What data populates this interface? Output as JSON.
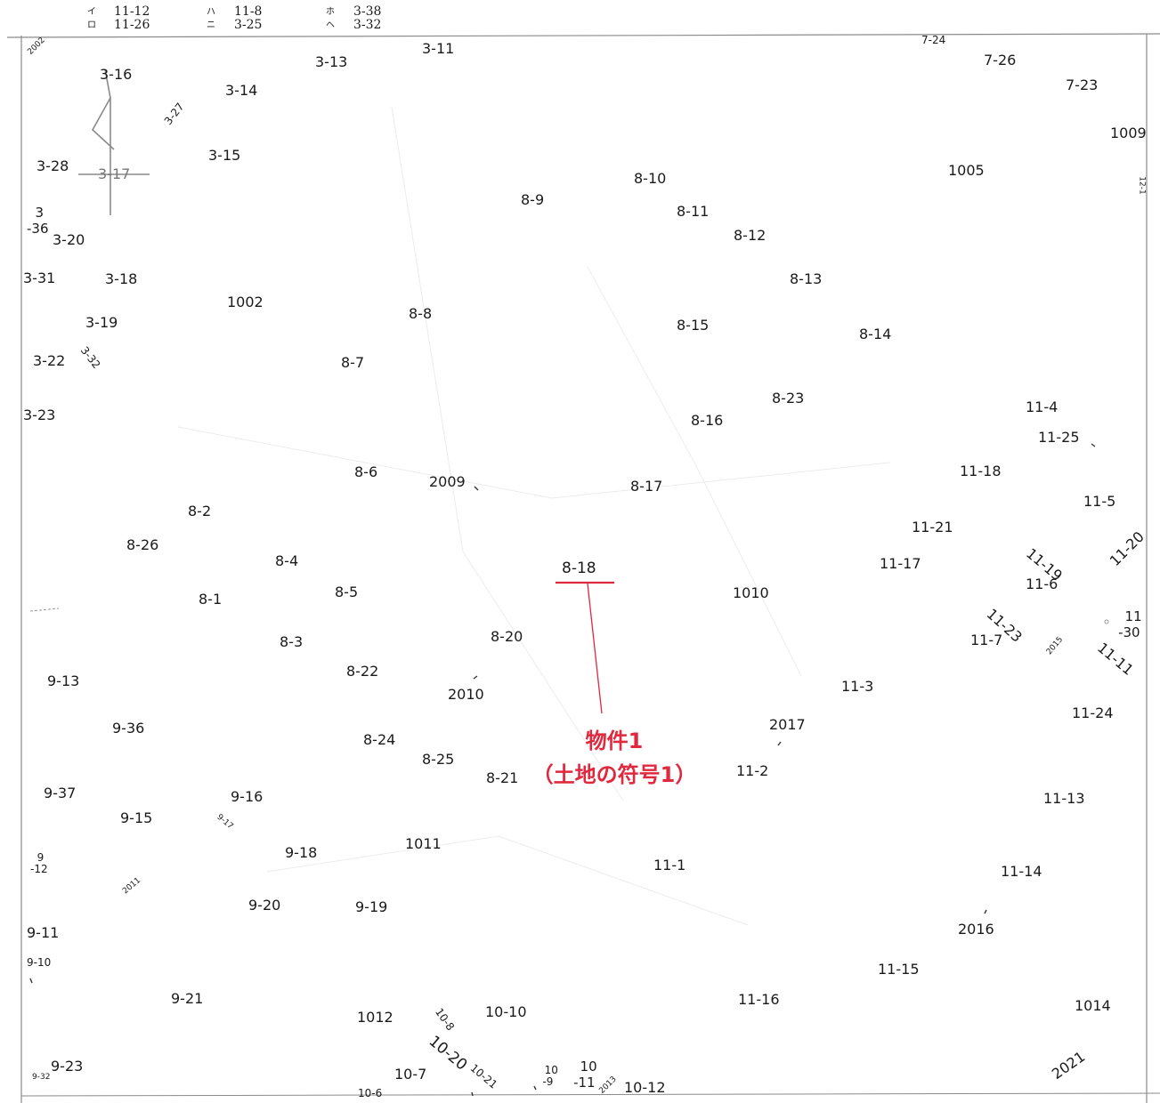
{
  "legend": {
    "entries": [
      {
        "marks": "イ\nロ",
        "values": "11-12\n11-26"
      },
      {
        "marks": "ハ\nニ",
        "values": "11-8\n3-25"
      },
      {
        "marks": "ホ\nヘ",
        "values": "3-38\n3-32"
      }
    ]
  },
  "subject": {
    "parcel": "8-18",
    "callout_line1": "物件1",
    "callout_line2": "（土地の符号1）",
    "accent_color": "#e0283f"
  },
  "parcels": [
    "3-11",
    "3-13",
    "3-16",
    "3-14",
    "3-27",
    "3-15",
    "3-28",
    "3-17",
    "3-36",
    "3-20",
    "3-31",
    "3-18",
    "1002",
    "3-19",
    "3-22",
    "3-32",
    "3-23",
    "7-24",
    "7-26",
    "7-23",
    "1009",
    "1005",
    "12-1",
    "8-9",
    "8-10",
    "8-11",
    "8-12",
    "8-13",
    "8-8",
    "8-15",
    "8-14",
    "8-7",
    "8-23",
    "8-16",
    "8-6",
    "2009",
    "8-17",
    "8-2",
    "8-26",
    "8-4",
    "8-5",
    "8-1",
    "8-3",
    "8-20",
    "8-22",
    "2010",
    "8-24",
    "8-25",
    "8-21",
    "1010",
    "2017",
    "11-2",
    "11-4",
    "11-25",
    "11-18",
    "11-5",
    "11-21",
    "11-17",
    "11-19",
    "11-20",
    "11-6",
    "11-23",
    "11-30",
    "11-7",
    "2015",
    "11-11",
    "11-3",
    "11-24",
    "11-13",
    "11-14",
    "11-1",
    "2016",
    "11-15",
    "11-16",
    "1014",
    "2021",
    "9-13",
    "9-36",
    "9-37",
    "9-16",
    "9-15",
    "9-17",
    "9-12",
    "2011",
    "9-18",
    "1011",
    "9-20",
    "9-19",
    "9-11",
    "9-10",
    "9-21",
    "9-23",
    "9-32",
    "1012",
    "10-8",
    "10-10",
    "10-20",
    "10-21",
    "10-9",
    "10-11",
    "10-7",
    "10-6",
    "2013",
    "10-12",
    "2002"
  ]
}
